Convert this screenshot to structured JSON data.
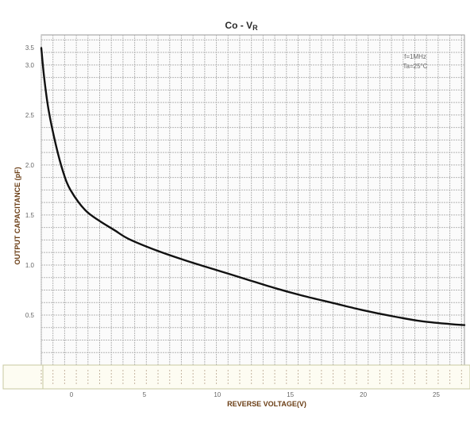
{
  "chart_data": {
    "type": "line",
    "title": "Co - V",
    "title_subscript": "R",
    "xlabel": "REVERSE VOLTAGE(V)",
    "ylabel": "OUTPUT  CAPACITANCE (pF)",
    "xlim": [
      0,
      29
    ],
    "ylim": [
      0,
      3.3
    ],
    "x_ticks": [
      0,
      5,
      10,
      15,
      20,
      25
    ],
    "y_ticks": [
      0.0,
      0.5,
      1.0,
      1.5,
      2.0,
      2.5,
      3.0,
      3.5
    ],
    "x_tick_labels": [
      "0",
      "5",
      "10",
      "15",
      "20",
      "25"
    ],
    "y_tick_labels": [
      "0.0",
      "0.5",
      "1.0",
      "1.5",
      "2.0",
      "2.5",
      "3.0",
      "3.5"
    ],
    "grid": true,
    "legend_placement": "top-right",
    "annotations": [
      "f=1MHz",
      "Ta=25°C"
    ],
    "series": [
      {
        "color": "#111111",
        "x": [
          0.0,
          0.2,
          0.5,
          1.0,
          1.5,
          2.0,
          3.0,
          4.0,
          5.0,
          6.0,
          8.0,
          10.0,
          12.0,
          14.0,
          16.0,
          18.0,
          20.0,
          22.0,
          24.0,
          26.0,
          28.0,
          29.0
        ],
        "y": [
          3.17,
          2.87,
          2.55,
          2.2,
          1.93,
          1.75,
          1.55,
          1.44,
          1.35,
          1.26,
          1.14,
          1.04,
          0.95,
          0.86,
          0.77,
          0.69,
          0.62,
          0.55,
          0.49,
          0.44,
          0.41,
          0.4
        ]
      }
    ]
  }
}
